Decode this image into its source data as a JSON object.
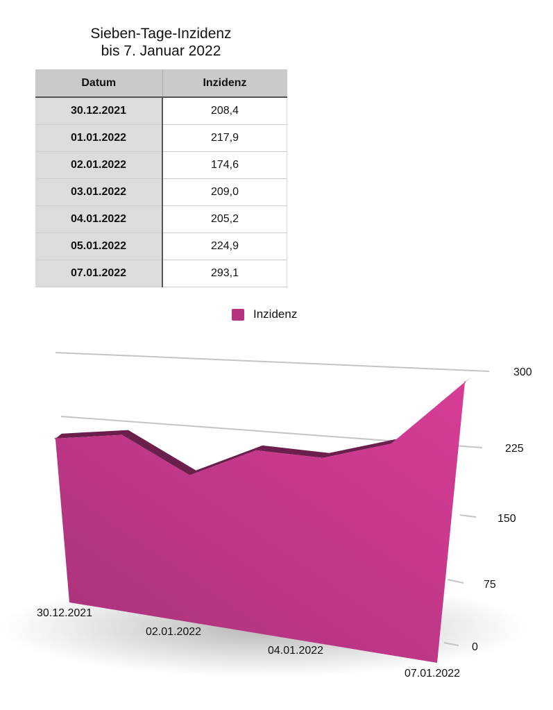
{
  "title_lines": [
    "Sieben-Tage-Inzidenz",
    "bis 7. Januar 2022"
  ],
  "table": {
    "headers": [
      "Datum",
      "Inzidenz"
    ],
    "rows": [
      [
        "30.12.2021",
        "208,4"
      ],
      [
        "01.01.2022",
        "217,9"
      ],
      [
        "02.01.2022",
        "174,6"
      ],
      [
        "03.01.2022",
        "209,0"
      ],
      [
        "04.01.2022",
        "205,2"
      ],
      [
        "05.01.2022",
        "224,9"
      ],
      [
        "07.01.2022",
        "293,1"
      ]
    ]
  },
  "chart_data": {
    "type": "area",
    "style": "3d",
    "categories": [
      "30.12.2021",
      "01.01.2022",
      "02.01.2022",
      "03.01.2022",
      "04.01.2022",
      "05.01.2022",
      "07.01.2022"
    ],
    "x_tick_labels": [
      "30.12.2021",
      "02.01.2022",
      "04.01.2022",
      "07.01.2022"
    ],
    "series": [
      {
        "name": "Inzidenz",
        "values": [
          208.4,
          217.9,
          174.6,
          209.0,
          205.2,
          224.9,
          293.1
        ],
        "color": "#b8337f"
      }
    ],
    "y_ticks": [
      0,
      75,
      150,
      225,
      300
    ],
    "ylim": [
      0,
      300
    ],
    "grid": true,
    "legend_position": "top",
    "axis_position": "right"
  }
}
